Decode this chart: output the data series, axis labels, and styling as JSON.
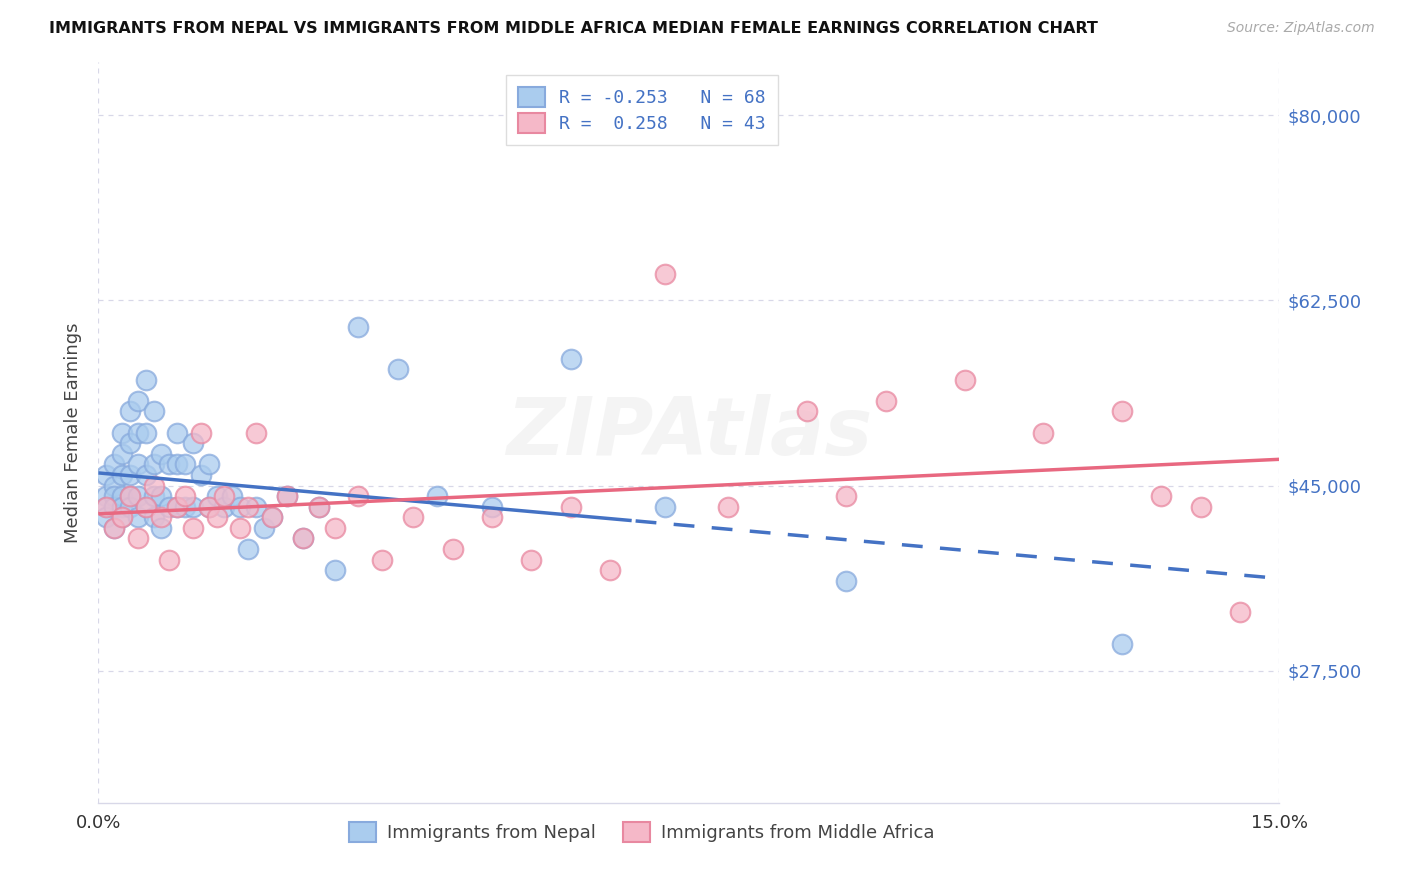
{
  "title": "IMMIGRANTS FROM NEPAL VS IMMIGRANTS FROM MIDDLE AFRICA MEDIAN FEMALE EARNINGS CORRELATION CHART",
  "source": "Source: ZipAtlas.com",
  "ylabel": "Median Female Earnings",
  "xmin": 0.0,
  "xmax": 0.15,
  "ymin": 15000,
  "ymax": 85000,
  "yticks": [
    27500,
    45000,
    62500,
    80000
  ],
  "ytick_labels_right": [
    "$27,500",
    "$45,000",
    "$62,500",
    "$80,000"
  ],
  "xticks": [
    0.0,
    0.05,
    0.1,
    0.15
  ],
  "xtick_labels": [
    "0.0%",
    "",
    "",
    "15.0%"
  ],
  "nepal_color": "#aaccee",
  "nepal_edge": "#88aadd",
  "africa_color": "#f5b8c8",
  "africa_edge": "#e888a0",
  "trend_nepal_color": "#4472c4",
  "trend_africa_color": "#e86880",
  "label_color": "#4472c4",
  "grid_color": "#d8d8e8",
  "R_nepal": -0.253,
  "N_nepal": 68,
  "R_africa": 0.258,
  "N_africa": 43,
  "nepal_x": [
    0.001,
    0.001,
    0.001,
    0.001,
    0.002,
    0.002,
    0.002,
    0.002,
    0.002,
    0.003,
    0.003,
    0.003,
    0.003,
    0.003,
    0.003,
    0.004,
    0.004,
    0.004,
    0.004,
    0.004,
    0.005,
    0.005,
    0.005,
    0.005,
    0.005,
    0.006,
    0.006,
    0.006,
    0.006,
    0.007,
    0.007,
    0.007,
    0.007,
    0.008,
    0.008,
    0.008,
    0.009,
    0.009,
    0.01,
    0.01,
    0.01,
    0.011,
    0.011,
    0.012,
    0.012,
    0.013,
    0.014,
    0.014,
    0.015,
    0.016,
    0.017,
    0.018,
    0.019,
    0.02,
    0.021,
    0.022,
    0.024,
    0.026,
    0.028,
    0.03,
    0.033,
    0.038,
    0.043,
    0.05,
    0.06,
    0.072,
    0.095,
    0.13
  ],
  "nepal_y": [
    44000,
    43000,
    42000,
    46000,
    45000,
    44000,
    43000,
    47000,
    41000,
    50000,
    48000,
    46000,
    44000,
    43000,
    42000,
    52000,
    49000,
    46000,
    44000,
    43000,
    53000,
    50000,
    47000,
    44000,
    42000,
    55000,
    50000,
    46000,
    43000,
    52000,
    47000,
    44000,
    42000,
    48000,
    44000,
    41000,
    47000,
    43000,
    50000,
    47000,
    43000,
    47000,
    43000,
    49000,
    43000,
    46000,
    47000,
    43000,
    44000,
    43000,
    44000,
    43000,
    39000,
    43000,
    41000,
    42000,
    44000,
    40000,
    43000,
    37000,
    60000,
    56000,
    44000,
    43000,
    57000,
    43000,
    36000,
    30000
  ],
  "africa_x": [
    0.001,
    0.002,
    0.003,
    0.004,
    0.005,
    0.006,
    0.007,
    0.008,
    0.009,
    0.01,
    0.011,
    0.012,
    0.013,
    0.014,
    0.015,
    0.016,
    0.018,
    0.019,
    0.02,
    0.022,
    0.024,
    0.026,
    0.028,
    0.03,
    0.033,
    0.036,
    0.04,
    0.045,
    0.05,
    0.055,
    0.06,
    0.065,
    0.072,
    0.08,
    0.09,
    0.095,
    0.1,
    0.11,
    0.12,
    0.13,
    0.135,
    0.14,
    0.145
  ],
  "africa_y": [
    43000,
    41000,
    42000,
    44000,
    40000,
    43000,
    45000,
    42000,
    38000,
    43000,
    44000,
    41000,
    50000,
    43000,
    42000,
    44000,
    41000,
    43000,
    50000,
    42000,
    44000,
    40000,
    43000,
    41000,
    44000,
    38000,
    42000,
    39000,
    42000,
    38000,
    43000,
    37000,
    65000,
    43000,
    52000,
    44000,
    53000,
    55000,
    50000,
    52000,
    44000,
    43000,
    33000
  ],
  "trend_nepal_solid_end": 0.068,
  "trend_africa_start": 0.0,
  "trend_africa_end": 0.15
}
